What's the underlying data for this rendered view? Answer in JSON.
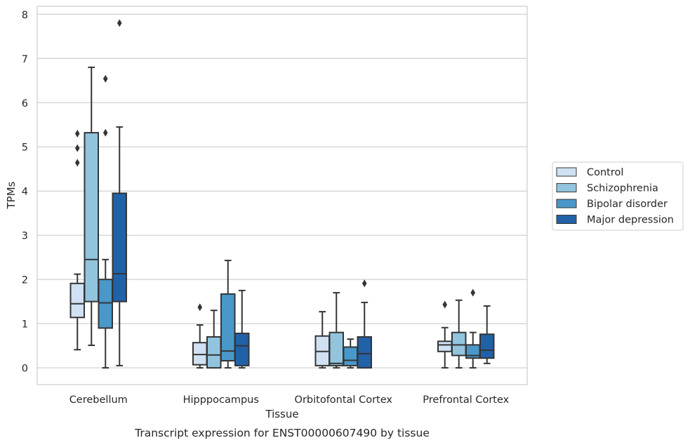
{
  "chart_data": {
    "type": "box",
    "caption": "Transcript expression for ENST00000607490 by tissue",
    "xlabel": "Tissue",
    "ylabel": "TPMs",
    "ylim": [
      -0.38,
      8.18
    ],
    "yticks": [
      0,
      1,
      2,
      3,
      4,
      5,
      6,
      7,
      8
    ],
    "grid": true,
    "legend_position": "right",
    "categories": [
      "Cerebellum",
      "Hipppocampus",
      "Orbitofontal Cortex",
      "Prefrontal Cortex"
    ],
    "series": [
      {
        "name": "Control",
        "color": "#cfe1f2",
        "boxes": [
          {
            "min": 0.41,
            "q1": 1.14,
            "median": 1.45,
            "q3": 1.91,
            "max": 2.12,
            "outliers": [
              4.64,
              4.97,
              5.3
            ]
          },
          {
            "min": 0.0,
            "q1": 0.07,
            "median": 0.3,
            "q3": 0.57,
            "max": 0.97,
            "outliers": [
              1.37
            ]
          },
          {
            "min": 0.0,
            "q1": 0.05,
            "median": 0.37,
            "q3": 0.72,
            "max": 1.27,
            "outliers": []
          },
          {
            "min": 0.0,
            "q1": 0.37,
            "median": 0.52,
            "q3": 0.6,
            "max": 0.91,
            "outliers": [
              1.43
            ]
          }
        ]
      },
      {
        "name": "Schizophrenia",
        "color": "#93c4de",
        "boxes": [
          {
            "min": 0.51,
            "q1": 1.5,
            "median": 2.45,
            "q3": 5.32,
            "max": 6.8,
            "outliers": []
          },
          {
            "min": 0.0,
            "q1": 0.0,
            "median": 0.29,
            "q3": 0.7,
            "max": 1.3,
            "outliers": []
          },
          {
            "min": 0.0,
            "q1": 0.05,
            "median": 0.1,
            "q3": 0.8,
            "max": 1.7,
            "outliers": []
          },
          {
            "min": 0.0,
            "q1": 0.28,
            "median": 0.52,
            "q3": 0.8,
            "max": 1.53,
            "outliers": []
          }
        ]
      },
      {
        "name": "Bipolar disorder",
        "color": "#4a98c9",
        "boxes": [
          {
            "min": 0.0,
            "q1": 0.9,
            "median": 1.47,
            "q3": 2.0,
            "max": 2.45,
            "outliers": [
              5.32,
              6.54
            ]
          },
          {
            "min": 0.0,
            "q1": 0.16,
            "median": 0.38,
            "q3": 1.67,
            "max": 2.43,
            "outliers": []
          },
          {
            "min": 0.0,
            "q1": 0.05,
            "median": 0.17,
            "q3": 0.47,
            "max": 0.65,
            "outliers": []
          },
          {
            "min": 0.0,
            "q1": 0.22,
            "median": 0.28,
            "q3": 0.52,
            "max": 0.8,
            "outliers": [
              1.7
            ]
          }
        ]
      },
      {
        "name": "Major depression",
        "color": "#2161a8",
        "boxes": [
          {
            "min": 0.05,
            "q1": 1.5,
            "median": 2.13,
            "q3": 3.95,
            "max": 5.45,
            "outliers": [
              7.8
            ]
          },
          {
            "min": 0.0,
            "q1": 0.05,
            "median": 0.5,
            "q3": 0.78,
            "max": 1.75,
            "outliers": []
          },
          {
            "min": 0.0,
            "q1": 0.0,
            "median": 0.32,
            "q3": 0.7,
            "max": 1.48,
            "outliers": [
              1.91
            ]
          },
          {
            "min": 0.1,
            "q1": 0.22,
            "median": 0.4,
            "q3": 0.76,
            "max": 1.4,
            "outliers": []
          }
        ]
      }
    ]
  }
}
